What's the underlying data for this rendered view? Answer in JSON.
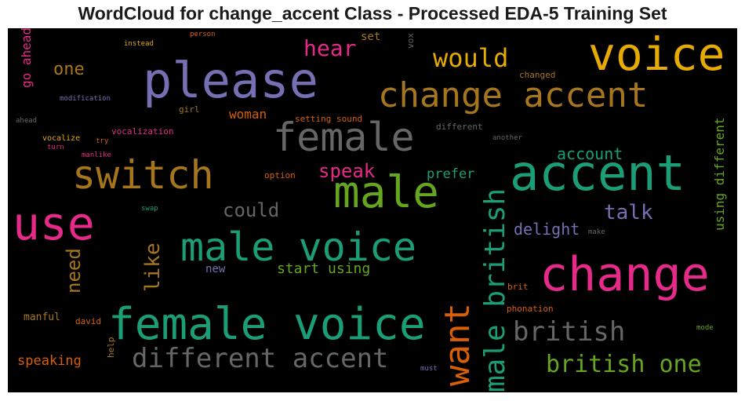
{
  "title": "WordCloud for change_accent Class - Processed EDA-5 Training Set",
  "colors": {
    "background": "#000000",
    "palette": [
      "#1b9e77",
      "#d95f02",
      "#7570b3",
      "#e7298a",
      "#66a61e",
      "#e6ab02",
      "#a6761d",
      "#666666"
    ]
  },
  "words": [
    {
      "text": "voice",
      "color": "#e6ab02"
    },
    {
      "text": "please",
      "color": "#7570b3"
    },
    {
      "text": "change accent",
      "color": "#a6761d"
    },
    {
      "text": "female",
      "color": "#666666"
    },
    {
      "text": "accent",
      "color": "#1b9e77"
    },
    {
      "text": "switch",
      "color": "#a6761d"
    },
    {
      "text": "male",
      "color": "#66a61e"
    },
    {
      "text": "use",
      "color": "#e7298a"
    },
    {
      "text": "male voice",
      "color": "#1b9e77"
    },
    {
      "text": "change",
      "color": "#e7298a"
    },
    {
      "text": "female voice",
      "color": "#1b9e77"
    },
    {
      "text": "different accent",
      "color": "#666666"
    },
    {
      "text": "british one",
      "color": "#66a61e"
    },
    {
      "text": "british",
      "color": "#666666"
    },
    {
      "text": "want",
      "color": "#d95f02"
    },
    {
      "text": "male british",
      "color": "#1b9e77"
    },
    {
      "text": "would",
      "color": "#e6ab02"
    },
    {
      "text": "hear",
      "color": "#e7298a"
    },
    {
      "text": "one",
      "color": "#a6761d"
    },
    {
      "text": "go ahead",
      "color": "#e7298a"
    },
    {
      "text": "could",
      "color": "#666666"
    },
    {
      "text": "talk",
      "color": "#7570b3"
    },
    {
      "text": "like",
      "color": "#a6761d"
    },
    {
      "text": "need",
      "color": "#a6761d"
    },
    {
      "text": "speak",
      "color": "#e7298a"
    },
    {
      "text": "account",
      "color": "#1b9e77"
    },
    {
      "text": "prefer",
      "color": "#1b9e77"
    },
    {
      "text": "delight",
      "color": "#7570b3"
    },
    {
      "text": "start using",
      "color": "#66a61e"
    },
    {
      "text": "using different",
      "color": "#66a61e"
    },
    {
      "text": "speaking",
      "color": "#d95f02"
    },
    {
      "text": "woman",
      "color": "#d95f02"
    },
    {
      "text": "set",
      "color": "#a6761d"
    },
    {
      "text": "vox",
      "color": "#666666"
    },
    {
      "text": "new",
      "color": "#7570b3"
    },
    {
      "text": "manful",
      "color": "#a6761d"
    },
    {
      "text": "david",
      "color": "#d95f02"
    },
    {
      "text": "help",
      "color": "#a6761d"
    },
    {
      "text": "setting sound",
      "color": "#d95f02"
    },
    {
      "text": "different",
      "color": "#666666"
    },
    {
      "text": "changed",
      "color": "#a6761d"
    },
    {
      "text": "instead",
      "color": "#e6ab02"
    },
    {
      "text": "person",
      "color": "#d95f02"
    },
    {
      "text": "modification",
      "color": "#7570b3"
    },
    {
      "text": "girl",
      "color": "#a6761d"
    },
    {
      "text": "ahead",
      "color": "#666666"
    },
    {
      "text": "vocalization",
      "color": "#e7298a"
    },
    {
      "text": "vocalize",
      "color": "#e6ab02"
    },
    {
      "text": "try",
      "color": "#d95f02"
    },
    {
      "text": "turn",
      "color": "#e7298a"
    },
    {
      "text": "manlike",
      "color": "#e7298a"
    },
    {
      "text": "another",
      "color": "#666666"
    },
    {
      "text": "option",
      "color": "#d95f02"
    },
    {
      "text": "swap",
      "color": "#1b9e77"
    },
    {
      "text": "make",
      "color": "#666666"
    },
    {
      "text": "brit",
      "color": "#d95f02"
    },
    {
      "text": "phonation",
      "color": "#d95f02"
    },
    {
      "text": "mode",
      "color": "#66a61e"
    },
    {
      "text": "must",
      "color": "#7570b3"
    }
  ]
}
